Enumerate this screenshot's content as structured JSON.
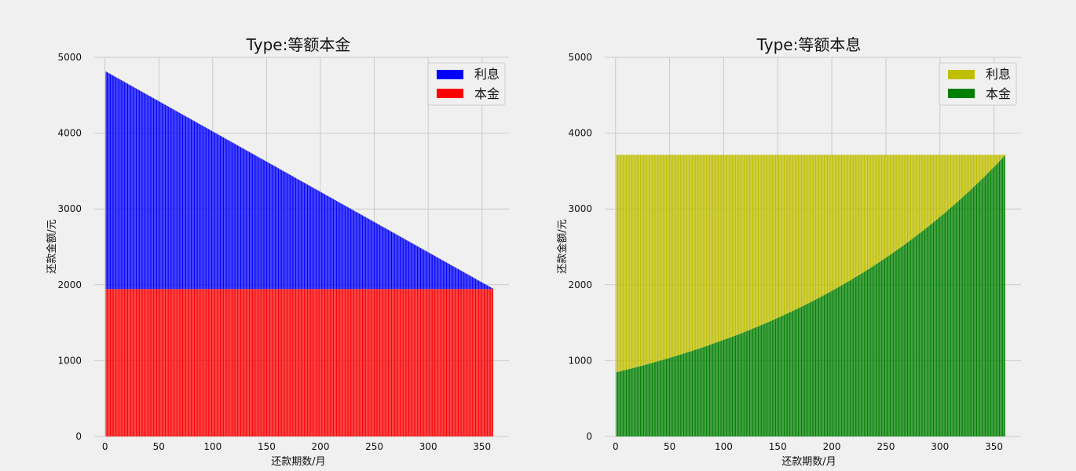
{
  "chart_data": [
    {
      "type": "bar",
      "stacked": true,
      "title": "Type:等额本金",
      "xlabel": "还款期数/月",
      "ylabel": "还款金额/元",
      "xlim": [
        -10,
        375
      ],
      "ylim": [
        0,
        5000
      ],
      "xticks": [
        0,
        50,
        100,
        150,
        200,
        250,
        300,
        350
      ],
      "yticks": [
        0,
        1000,
        2000,
        3000,
        4000,
        5000
      ],
      "grid": true,
      "legend_position": "top-right",
      "x_periods": [
        1,
        360
      ],
      "series": [
        {
          "name": "利息",
          "color": "#0000ff",
          "values_start": 2867,
          "values_end": 8,
          "shape": "linear"
        },
        {
          "name": "本金",
          "color": "#ff0000",
          "values_constant": 1944
        }
      ]
    },
    {
      "type": "bar",
      "stacked": true,
      "title": "Type:等额本息",
      "xlabel": "还款期数/月",
      "ylabel": "还款金额/元",
      "xlim": [
        -10,
        375
      ],
      "ylim": [
        0,
        5000
      ],
      "xticks": [
        0,
        50,
        100,
        150,
        200,
        250,
        300,
        350
      ],
      "yticks": [
        0,
        1000,
        2000,
        3000,
        4000,
        5000
      ],
      "grid": true,
      "legend_position": "top-right",
      "x_periods": [
        1,
        360
      ],
      "series": [
        {
          "name": "利息",
          "color": "#bfbf00",
          "values_start": 2867,
          "values_end": 12,
          "shape": "annuity"
        },
        {
          "name": "本金",
          "color": "#008000",
          "values_start": 848,
          "values_end": 3703,
          "shape": "annuity"
        }
      ],
      "monthly_payment": 3715
    }
  ]
}
